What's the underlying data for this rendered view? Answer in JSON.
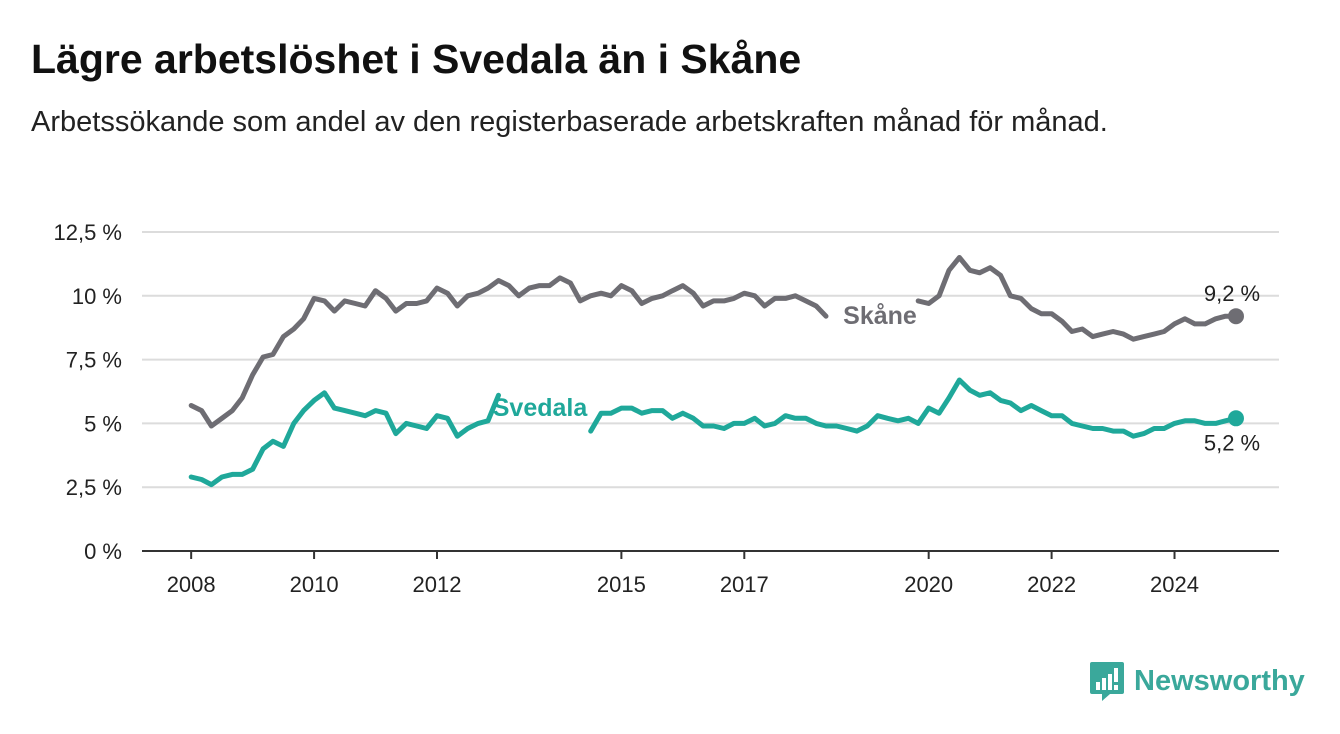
{
  "header": {
    "title": "Lägre arbetslöshet i Svedala än i Skåne",
    "subtitle": "Arbetssökande som andel av den registerbaserade arbetskraften månad för månad."
  },
  "brand": {
    "name": "Newsworthy",
    "icon": "newsworthy-logo-icon",
    "color": "#3aa89b"
  },
  "chart_data": {
    "type": "line",
    "title": "Lägre arbetslöshet i Svedala än i Skåne",
    "subtitle": "Arbetssökande som andel av den registerbaserade arbetskraften månad för månad.",
    "x_ticks": [
      "2008",
      "2010",
      "2012",
      "2015",
      "2017",
      "2020",
      "2022",
      "2024"
    ],
    "x_tick_values": [
      2008.0,
      2010.0,
      2012.0,
      2015.0,
      2017.0,
      2020.0,
      2022.0,
      2024.0
    ],
    "xlim": [
      2007.2,
      2025.7
    ],
    "y_ticks": [
      "0 %",
      "2,5 %",
      "5 %",
      "7,5 %",
      "10 %",
      "12,5 %"
    ],
    "y_tick_values": [
      0,
      2.5,
      5,
      7.5,
      10,
      12.5
    ],
    "ylim": [
      0,
      12.5
    ],
    "grid": true,
    "series": [
      {
        "name": "Skåne",
        "color": "#6e6d73",
        "end_label": "9,2 %",
        "points": [
          [
            2008.0,
            5.7
          ],
          [
            2008.17,
            5.5
          ],
          [
            2008.33,
            4.9
          ],
          [
            2008.5,
            5.2
          ],
          [
            2008.67,
            5.5
          ],
          [
            2008.83,
            6.0
          ],
          [
            2009.0,
            6.9
          ],
          [
            2009.17,
            7.6
          ],
          [
            2009.33,
            7.7
          ],
          [
            2009.5,
            8.4
          ],
          [
            2009.67,
            8.7
          ],
          [
            2009.83,
            9.1
          ],
          [
            2010.0,
            9.9
          ],
          [
            2010.17,
            9.8
          ],
          [
            2010.33,
            9.4
          ],
          [
            2010.5,
            9.8
          ],
          [
            2010.67,
            9.7
          ],
          [
            2010.83,
            9.6
          ],
          [
            2011.0,
            10.2
          ],
          [
            2011.17,
            9.9
          ],
          [
            2011.33,
            9.4
          ],
          [
            2011.5,
            9.7
          ],
          [
            2011.67,
            9.7
          ],
          [
            2011.83,
            9.8
          ],
          [
            2012.0,
            10.3
          ],
          [
            2012.17,
            10.1
          ],
          [
            2012.33,
            9.6
          ],
          [
            2012.5,
            10.0
          ],
          [
            2012.67,
            10.1
          ],
          [
            2012.83,
            10.3
          ],
          [
            2013.0,
            10.6
          ],
          [
            2013.17,
            10.4
          ],
          [
            2013.33,
            10.0
          ],
          [
            2013.5,
            10.3
          ],
          [
            2013.67,
            10.4
          ],
          [
            2013.83,
            10.4
          ],
          [
            2014.0,
            10.7
          ],
          [
            2014.17,
            10.5
          ],
          [
            2014.33,
            9.8
          ],
          [
            2014.5,
            10.0
          ],
          [
            2014.67,
            10.1
          ],
          [
            2014.83,
            10.0
          ],
          [
            2015.0,
            10.4
          ],
          [
            2015.17,
            10.2
          ],
          [
            2015.33,
            9.7
          ],
          [
            2015.5,
            9.9
          ],
          [
            2015.67,
            10.0
          ],
          [
            2015.83,
            10.2
          ],
          [
            2016.0,
            10.4
          ],
          [
            2016.17,
            10.1
          ],
          [
            2016.33,
            9.6
          ],
          [
            2016.5,
            9.8
          ],
          [
            2016.67,
            9.8
          ],
          [
            2016.83,
            9.9
          ],
          [
            2017.0,
            10.1
          ],
          [
            2017.17,
            10.0
          ],
          [
            2017.33,
            9.6
          ],
          [
            2017.5,
            9.9
          ],
          [
            2017.67,
            9.9
          ],
          [
            2017.83,
            10.0
          ],
          [
            2018.0,
            9.8
          ],
          [
            2018.17,
            9.6
          ],
          [
            2018.33,
            9.2
          ],
          [
            2019.83,
            9.8
          ],
          [
            2020.0,
            9.7
          ],
          [
            2020.17,
            10.0
          ],
          [
            2020.33,
            11.0
          ],
          [
            2020.5,
            11.5
          ],
          [
            2020.67,
            11.0
          ],
          [
            2020.83,
            10.9
          ],
          [
            2021.0,
            11.1
          ],
          [
            2021.17,
            10.8
          ],
          [
            2021.33,
            10.0
          ],
          [
            2021.5,
            9.9
          ],
          [
            2021.67,
            9.5
          ],
          [
            2021.83,
            9.3
          ],
          [
            2022.0,
            9.3
          ],
          [
            2022.17,
            9.0
          ],
          [
            2022.33,
            8.6
          ],
          [
            2022.5,
            8.7
          ],
          [
            2022.67,
            8.4
          ],
          [
            2022.83,
            8.5
          ],
          [
            2023.0,
            8.6
          ],
          [
            2023.17,
            8.5
          ],
          [
            2023.33,
            8.3
          ],
          [
            2023.5,
            8.4
          ],
          [
            2023.67,
            8.5
          ],
          [
            2023.83,
            8.6
          ],
          [
            2024.0,
            8.9
          ],
          [
            2024.17,
            9.1
          ],
          [
            2024.33,
            8.9
          ],
          [
            2024.5,
            8.9
          ],
          [
            2024.67,
            9.1
          ],
          [
            2024.83,
            9.2
          ],
          [
            2025.0,
            9.2
          ]
        ]
      },
      {
        "name": "Svedala",
        "color": "#1fa89a",
        "end_label": "5,2 %",
        "points": [
          [
            2008.0,
            2.9
          ],
          [
            2008.17,
            2.8
          ],
          [
            2008.33,
            2.6
          ],
          [
            2008.5,
            2.9
          ],
          [
            2008.67,
            3.0
          ],
          [
            2008.83,
            3.0
          ],
          [
            2009.0,
            3.2
          ],
          [
            2009.17,
            4.0
          ],
          [
            2009.33,
            4.3
          ],
          [
            2009.5,
            4.1
          ],
          [
            2009.67,
            5.0
          ],
          [
            2009.83,
            5.5
          ],
          [
            2010.0,
            5.9
          ],
          [
            2010.17,
            6.2
          ],
          [
            2010.33,
            5.6
          ],
          [
            2010.5,
            5.5
          ],
          [
            2010.67,
            5.4
          ],
          [
            2010.83,
            5.3
          ],
          [
            2011.0,
            5.5
          ],
          [
            2011.17,
            5.4
          ],
          [
            2011.33,
            4.6
          ],
          [
            2011.5,
            5.0
          ],
          [
            2011.67,
            4.9
          ],
          [
            2011.83,
            4.8
          ],
          [
            2012.0,
            5.3
          ],
          [
            2012.17,
            5.2
          ],
          [
            2012.33,
            4.5
          ],
          [
            2012.5,
            4.8
          ],
          [
            2012.67,
            5.0
          ],
          [
            2012.83,
            5.1
          ],
          [
            2013.0,
            6.1
          ],
          [
            2014.5,
            4.7
          ],
          [
            2014.67,
            5.4
          ],
          [
            2014.83,
            5.4
          ],
          [
            2015.0,
            5.6
          ],
          [
            2015.17,
            5.6
          ],
          [
            2015.33,
            5.4
          ],
          [
            2015.5,
            5.5
          ],
          [
            2015.67,
            5.5
          ],
          [
            2015.83,
            5.2
          ],
          [
            2016.0,
            5.4
          ],
          [
            2016.17,
            5.2
          ],
          [
            2016.33,
            4.9
          ],
          [
            2016.5,
            4.9
          ],
          [
            2016.67,
            4.8
          ],
          [
            2016.83,
            5.0
          ],
          [
            2017.0,
            5.0
          ],
          [
            2017.17,
            5.2
          ],
          [
            2017.33,
            4.9
          ],
          [
            2017.5,
            5.0
          ],
          [
            2017.67,
            5.3
          ],
          [
            2017.83,
            5.2
          ],
          [
            2018.0,
            5.2
          ],
          [
            2018.17,
            5.0
          ],
          [
            2018.33,
            4.9
          ],
          [
            2018.5,
            4.9
          ],
          [
            2018.67,
            4.8
          ],
          [
            2018.83,
            4.7
          ],
          [
            2019.0,
            4.9
          ],
          [
            2019.17,
            5.3
          ],
          [
            2019.33,
            5.2
          ],
          [
            2019.5,
            5.1
          ],
          [
            2019.67,
            5.2
          ],
          [
            2019.83,
            5.0
          ],
          [
            2020.0,
            5.6
          ],
          [
            2020.17,
            5.4
          ],
          [
            2020.33,
            6.0
          ],
          [
            2020.5,
            6.7
          ],
          [
            2020.67,
            6.3
          ],
          [
            2020.83,
            6.1
          ],
          [
            2021.0,
            6.2
          ],
          [
            2021.17,
            5.9
          ],
          [
            2021.33,
            5.8
          ],
          [
            2021.5,
            5.5
          ],
          [
            2021.67,
            5.7
          ],
          [
            2021.83,
            5.5
          ],
          [
            2022.0,
            5.3
          ],
          [
            2022.17,
            5.3
          ],
          [
            2022.33,
            5.0
          ],
          [
            2022.5,
            4.9
          ],
          [
            2022.67,
            4.8
          ],
          [
            2022.83,
            4.8
          ],
          [
            2023.0,
            4.7
          ],
          [
            2023.17,
            4.7
          ],
          [
            2023.33,
            4.5
          ],
          [
            2023.5,
            4.6
          ],
          [
            2023.67,
            4.8
          ],
          [
            2023.83,
            4.8
          ],
          [
            2024.0,
            5.0
          ],
          [
            2024.17,
            5.1
          ],
          [
            2024.33,
            5.1
          ],
          [
            2024.5,
            5.0
          ],
          [
            2024.67,
            5.0
          ],
          [
            2024.83,
            5.1
          ],
          [
            2025.0,
            5.2
          ]
        ]
      }
    ]
  }
}
